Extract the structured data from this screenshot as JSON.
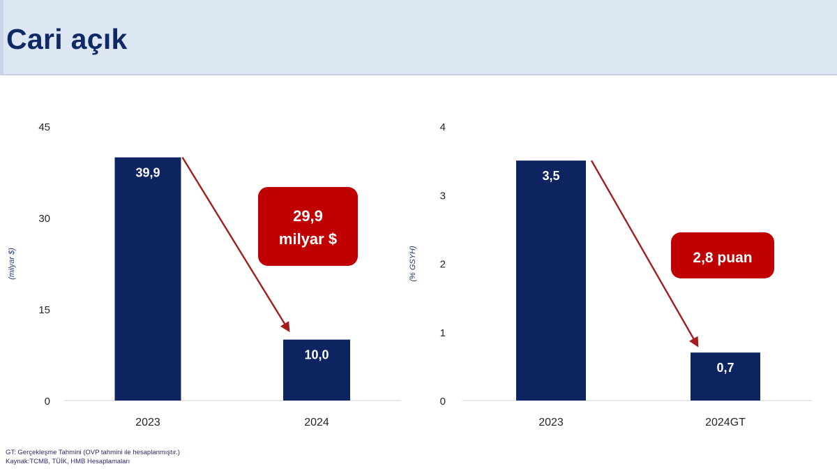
{
  "title": "Cari açık",
  "footnotes": {
    "line1": "GT: Gerçekleşme Tahmini (OVP tahmini ile hesaplanmıştır.)",
    "line2": "Kaynak:TCMB, TÜİK, HMB Hesaplamaları"
  },
  "colors": {
    "bar": "#0d2461",
    "callout": "#c00000",
    "arrow": "#a51c1c",
    "title": "#0e2a66",
    "band": "#dde6f3"
  },
  "chart_data": [
    {
      "type": "bar",
      "categories": [
        "2023",
        "2024"
      ],
      "values": [
        39.9,
        10.0
      ],
      "value_labels": [
        "39,9",
        "10,0"
      ],
      "ylabel": "(milyar $)",
      "ylim": [
        0,
        45
      ],
      "yticks": [
        0,
        15,
        30,
        45
      ],
      "ytick_labels": [
        "0",
        "15",
        "30",
        "45"
      ],
      "grid": false,
      "annotation": [
        "29,9",
        "milyar $"
      ]
    },
    {
      "type": "bar",
      "categories": [
        "2023",
        "2024GT"
      ],
      "values": [
        3.5,
        0.7
      ],
      "value_labels": [
        "3,5",
        "0,7"
      ],
      "ylabel": "(% GSYH)",
      "ylim": [
        0,
        4
      ],
      "yticks": [
        0,
        1,
        2,
        3,
        4
      ],
      "ytick_labels": [
        "0",
        "1",
        "2",
        "3",
        "4"
      ],
      "grid": false,
      "annotation": [
        "2,8 puan"
      ]
    }
  ]
}
